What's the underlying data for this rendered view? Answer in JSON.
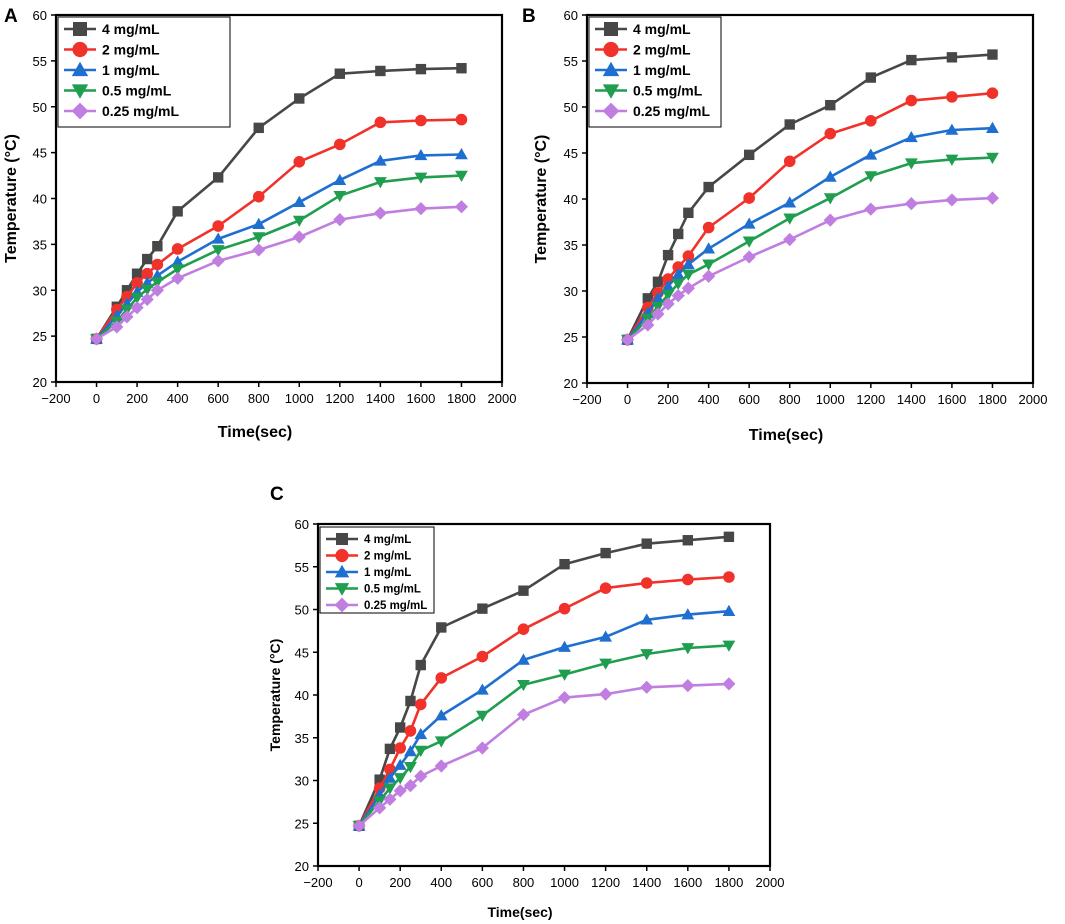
{
  "chart_data": [
    {
      "panel_label": "A",
      "type": "line",
      "title": "",
      "xlabel": "Time(sec)",
      "ylabel": "Temperature (°C)",
      "xlim": [
        -200,
        2000
      ],
      "ylim": [
        20,
        60
      ],
      "xticks": [
        -200,
        0,
        200,
        400,
        600,
        800,
        1000,
        1200,
        1400,
        1600,
        1800,
        2000
      ],
      "yticks": [
        20,
        25,
        30,
        35,
        40,
        45,
        50,
        55,
        60
      ],
      "legend_position": "top-left",
      "x": [
        0,
        100,
        150,
        200,
        250,
        300,
        400,
        600,
        800,
        1000,
        1200,
        1400,
        1600,
        1800
      ],
      "series": [
        {
          "name": "4 mg/mL",
          "color": "#474747",
          "marker": "square",
          "values": [
            24.7,
            28.2,
            30.0,
            31.8,
            33.4,
            34.8,
            38.6,
            42.3,
            47.7,
            50.9,
            53.6,
            53.9,
            54.1,
            54.2
          ]
        },
        {
          "name": "2 mg/mL",
          "color": "#f0322b",
          "marker": "circle",
          "values": [
            24.7,
            27.9,
            29.3,
            30.8,
            31.8,
            32.8,
            34.5,
            37.0,
            40.2,
            44.0,
            45.9,
            48.3,
            48.5,
            48.6
          ]
        },
        {
          "name": "1 mg/mL",
          "color": "#1e6fd0",
          "marker": "triangle-up",
          "values": [
            24.7,
            27.2,
            28.5,
            29.8,
            30.8,
            31.6,
            33.1,
            35.6,
            37.2,
            39.6,
            42.0,
            44.1,
            44.7,
            44.8
          ]
        },
        {
          "name": "0.5 mg/mL",
          "color": "#1f9e4f",
          "marker": "triangle-down",
          "values": [
            24.7,
            26.6,
            27.9,
            29.2,
            30.1,
            30.9,
            32.3,
            34.4,
            35.8,
            37.6,
            40.3,
            41.8,
            42.3,
            42.5
          ]
        },
        {
          "name": "0.25 mg/mL",
          "color": "#c07fe0",
          "marker": "diamond",
          "values": [
            24.7,
            26.0,
            27.1,
            28.1,
            29.0,
            30.0,
            31.3,
            33.2,
            34.4,
            35.8,
            37.7,
            38.4,
            38.9,
            39.1
          ]
        }
      ]
    },
    {
      "panel_label": "B",
      "type": "line",
      "title": "",
      "xlabel": "Time(sec)",
      "ylabel": "Temperature (°C)",
      "xlim": [
        -200,
        2000
      ],
      "ylim": [
        20,
        60
      ],
      "xticks": [
        -200,
        0,
        200,
        400,
        600,
        800,
        1000,
        1200,
        1400,
        1600,
        1800,
        2000
      ],
      "yticks": [
        20,
        25,
        30,
        35,
        40,
        45,
        50,
        55,
        60
      ],
      "legend_position": "top-left",
      "x": [
        0,
        100,
        150,
        200,
        250,
        300,
        400,
        600,
        800,
        1000,
        1200,
        1400,
        1600,
        1800
      ],
      "series": [
        {
          "name": "4 mg/mL",
          "color": "#474747",
          "marker": "square",
          "values": [
            24.7,
            29.2,
            31.0,
            33.9,
            36.2,
            38.5,
            41.3,
            44.8,
            48.1,
            50.2,
            53.2,
            55.1,
            55.4,
            55.7
          ]
        },
        {
          "name": "2 mg/mL",
          "color": "#f0322b",
          "marker": "circle",
          "values": [
            24.7,
            28.2,
            29.8,
            31.3,
            32.6,
            33.8,
            36.9,
            40.1,
            44.1,
            47.1,
            48.5,
            50.7,
            51.1,
            51.5
          ]
        },
        {
          "name": "1 mg/mL",
          "color": "#1e6fd0",
          "marker": "triangle-up",
          "values": [
            24.7,
            27.6,
            29.2,
            30.5,
            31.8,
            32.9,
            34.6,
            37.3,
            39.6,
            42.4,
            44.8,
            46.7,
            47.5,
            47.7
          ]
        },
        {
          "name": "0.5 mg/mL",
          "color": "#1f9e4f",
          "marker": "triangle-down",
          "values": [
            24.7,
            27.0,
            28.3,
            29.6,
            30.8,
            31.8,
            32.9,
            35.4,
            37.9,
            40.1,
            42.5,
            43.9,
            44.3,
            44.5
          ]
        },
        {
          "name": "0.25 mg/mL",
          "color": "#c07fe0",
          "marker": "diamond",
          "values": [
            24.7,
            26.3,
            27.5,
            28.6,
            29.5,
            30.3,
            31.6,
            33.7,
            35.6,
            37.7,
            38.9,
            39.5,
            39.9,
            40.1
          ]
        }
      ]
    },
    {
      "panel_label": "C",
      "type": "line",
      "title": "",
      "xlabel": "Time(sec)",
      "ylabel": "Temperature (°C)",
      "xlim": [
        -200,
        2000
      ],
      "ylim": [
        20,
        60
      ],
      "xticks": [
        -200,
        0,
        200,
        400,
        600,
        800,
        1000,
        1200,
        1400,
        1600,
        1800,
        2000
      ],
      "yticks": [
        20,
        25,
        30,
        35,
        40,
        45,
        50,
        55,
        60
      ],
      "legend_position": "top-left",
      "x": [
        0,
        100,
        150,
        200,
        250,
        300,
        400,
        600,
        800,
        1000,
        1200,
        1400,
        1600,
        1800
      ],
      "series": [
        {
          "name": "4 mg/mL",
          "color": "#474747",
          "marker": "square",
          "values": [
            24.7,
            30.1,
            33.7,
            36.2,
            39.3,
            43.5,
            47.9,
            50.1,
            52.2,
            55.3,
            56.6,
            57.7,
            58.1,
            58.5
          ]
        },
        {
          "name": "2 mg/mL",
          "color": "#f0322b",
          "marker": "circle",
          "values": [
            24.7,
            29.1,
            31.3,
            33.8,
            35.8,
            38.9,
            42.0,
            44.5,
            47.7,
            50.1,
            52.5,
            53.1,
            53.5,
            53.8
          ]
        },
        {
          "name": "1 mg/mL",
          "color": "#1e6fd0",
          "marker": "triangle-up",
          "values": [
            24.7,
            28.3,
            30.3,
            31.8,
            33.4,
            35.4,
            37.6,
            40.6,
            44.1,
            45.6,
            46.8,
            48.8,
            49.4,
            49.8
          ]
        },
        {
          "name": "0.5 mg/mL",
          "color": "#1f9e4f",
          "marker": "triangle-down",
          "values": [
            24.7,
            27.6,
            29.1,
            30.3,
            31.6,
            33.5,
            34.6,
            37.6,
            41.2,
            42.4,
            43.7,
            44.8,
            45.5,
            45.8
          ]
        },
        {
          "name": "0.25 mg/mL",
          "color": "#c07fe0",
          "marker": "diamond",
          "values": [
            24.7,
            26.8,
            27.8,
            28.8,
            29.4,
            30.5,
            31.7,
            33.8,
            37.7,
            39.7,
            40.1,
            40.9,
            41.1,
            41.3
          ]
        }
      ]
    }
  ]
}
